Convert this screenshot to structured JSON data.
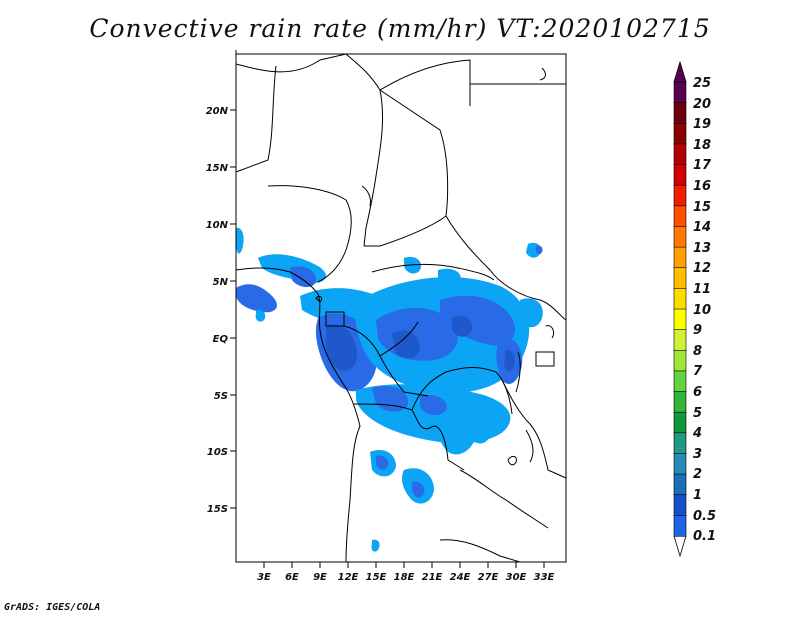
{
  "title": "Convective rain rate (mm/hr) VT:2020102715",
  "credit": "GrADS: IGES/COLA",
  "axes": {
    "lon_ticks": [
      "3E",
      "6E",
      "9E",
      "12E",
      "15E",
      "18E",
      "21E",
      "24E",
      "27E",
      "30E",
      "33E"
    ],
    "lat_ticks": [
      "20N",
      "15N",
      "10N",
      "5N",
      "EQ",
      "5S",
      "10S",
      "15S"
    ]
  },
  "colorbar": {
    "levels": [
      "25",
      "20",
      "19",
      "18",
      "17",
      "16",
      "15",
      "14",
      "13",
      "12",
      "11",
      "10",
      "9",
      "8",
      "7",
      "6",
      "5",
      "4",
      "3",
      "2",
      "1",
      "0.5",
      "0.1"
    ],
    "colors": [
      "#5a0050",
      "#6e0010",
      "#8c0000",
      "#b40000",
      "#d20000",
      "#f01e00",
      "#ff5000",
      "#ff7800",
      "#ffa000",
      "#ffbe00",
      "#ffdc00",
      "#ffff00",
      "#d2f032",
      "#a0e632",
      "#64d23c",
      "#32b43c",
      "#14963c",
      "#1e9b82",
      "#288cb4",
      "#1e6eb9",
      "#1450c8",
      "#1e64e6",
      "#00a0f5"
    ]
  }
}
